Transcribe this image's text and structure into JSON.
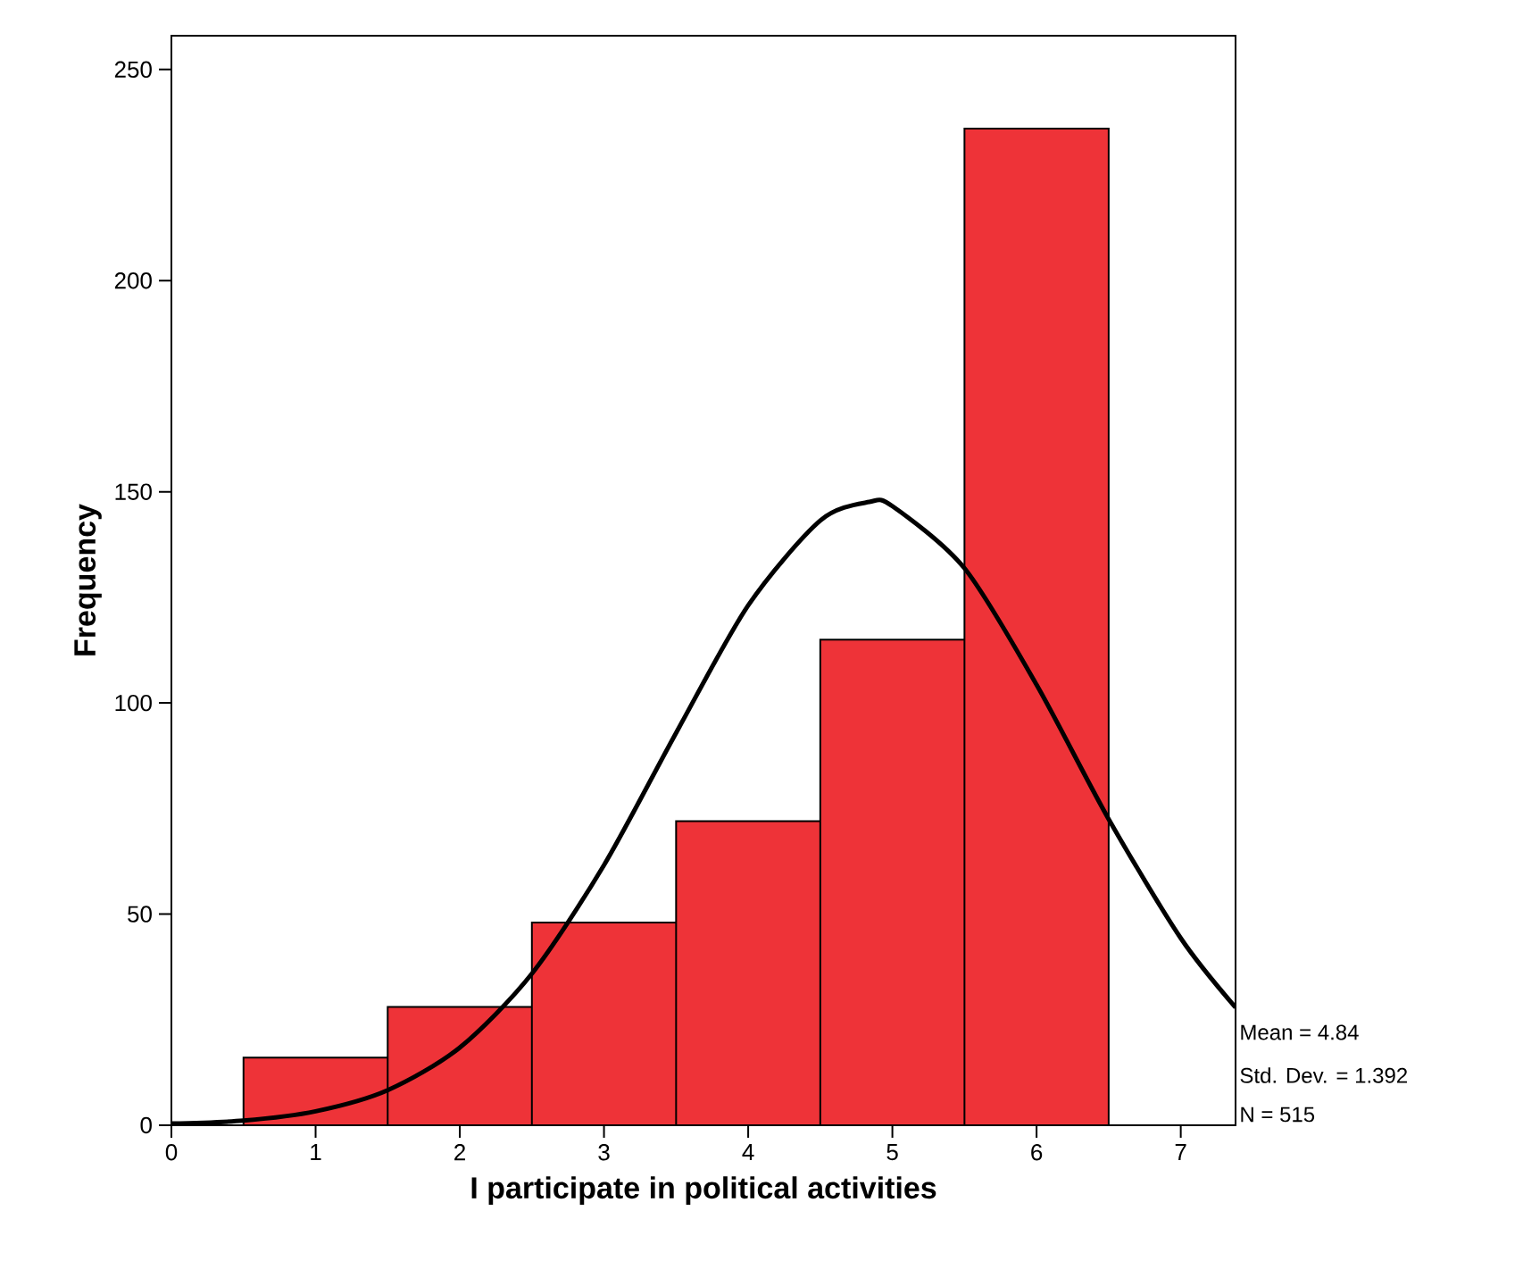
{
  "chart_data": {
    "type": "histogram",
    "xlabel": "I participate in political activities",
    "ylabel": "Frequency",
    "bins": [
      0.5,
      1.5,
      2.5,
      3.5,
      4.5,
      5.5,
      6.5
    ],
    "values": [
      16,
      28,
      48,
      72,
      115,
      236
    ],
    "color": "#ee3338",
    "series": [
      {
        "type": "line",
        "color": "#000000",
        "x": [
          0,
          0.5,
          1,
          1.5,
          2,
          2.5,
          3,
          3.5,
          4,
          4.5,
          4.84,
          5,
          5.5,
          6,
          6.5,
          7,
          7.38
        ],
        "values": [
          0.4,
          1.1,
          3.3,
          8.3,
          18.4,
          35.9,
          61.6,
          92.9,
          123.1,
          143.2,
          147.6,
          146.6,
          131.9,
          104.3,
          72.5,
          44.3,
          27.9
        ]
      }
    ],
    "xlim": [
      0,
      7.38
    ],
    "ylim": [
      0,
      258
    ],
    "xticks": [
      0,
      1,
      2,
      3,
      4,
      5,
      6,
      7
    ],
    "yticks": [
      0,
      50,
      100,
      150,
      200,
      250
    ],
    "annotations": [
      "Mean = 4.84",
      "Std. Dev. = 1.392",
      "N = 515"
    ],
    "grid": false
  }
}
